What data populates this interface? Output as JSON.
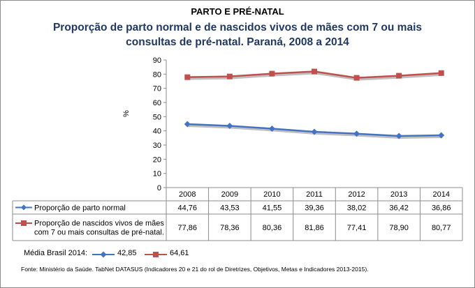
{
  "header": {
    "pretitle": "PARTO E PRÉ-NATAL",
    "title_line1": "Proporção de parto normal e de nascidos vivos de mães com 7 ou mais",
    "title_line2": "consultas de pré-natal. Paraná, 2008 a 2014"
  },
  "chart_data": {
    "type": "line",
    "ylabel": "%",
    "ylim": [
      0,
      90
    ],
    "yticks": [
      0,
      10,
      20,
      30,
      40,
      50,
      60,
      70,
      80,
      90
    ],
    "grid": false,
    "categories": [
      "2008",
      "2009",
      "2010",
      "2011",
      "2012",
      "2013",
      "2014"
    ],
    "series": [
      {
        "name": "Proporção de parto normal",
        "name_lines": [
          "Proporção de parto normal"
        ],
        "color": "#4472c4",
        "marker": "diamond",
        "values": [
          44.76,
          43.53,
          41.55,
          39.36,
          38.02,
          36.42,
          36.86
        ],
        "labels": [
          "44,76",
          "43,53",
          "41,55",
          "39,36",
          "38,02",
          "36,42",
          "36,86"
        ]
      },
      {
        "name": "Proporção de nascidos vivos de mães com 7 ou mais consultas de pré-natal.",
        "name_lines": [
          "Proporção de nascidos vivos de mães",
          "com 7 ou mais consultas de pré-natal."
        ],
        "color": "#c0504d",
        "marker": "square",
        "values": [
          77.86,
          78.36,
          80.36,
          81.86,
          77.41,
          78.9,
          80.77
        ],
        "labels": [
          "77,86",
          "78,36",
          "80,36",
          "81,86",
          "77,41",
          "78,90",
          "80,77"
        ]
      }
    ]
  },
  "brazil_average": {
    "label": "Média Brasil 2014:",
    "series1_value": "42,85",
    "series2_value": "64,61"
  },
  "source": "Fonte: Ministério da Saúde. TabNet DATASUS (Indicadores 20 e 21 do rol de Diretrizes, Objetivos, Metas e Indicadores 2013-2015)."
}
